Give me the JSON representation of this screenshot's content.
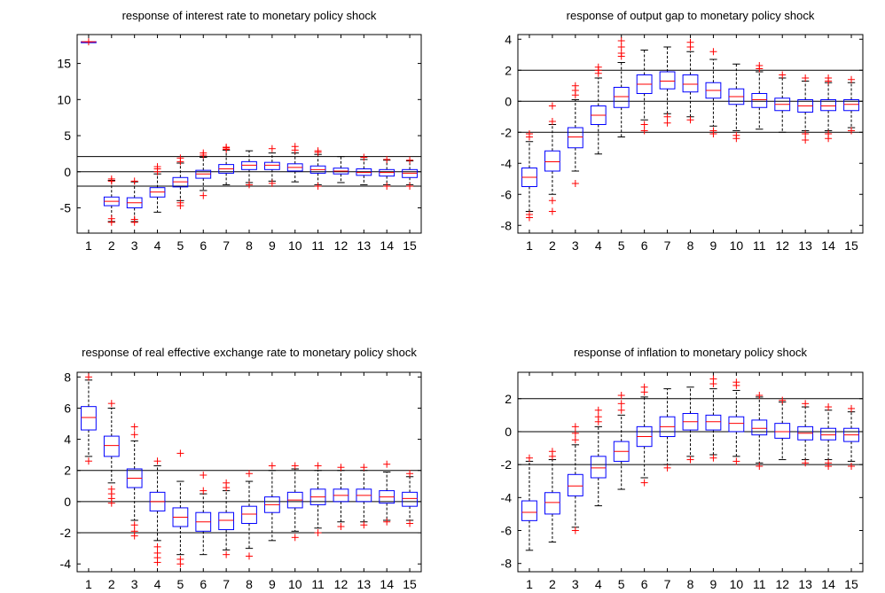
{
  "style": {
    "box_color": "#0000ff",
    "median_color": "#ff0000",
    "outlier_color": "#ff0000",
    "whisker_color": "#000000",
    "band_color": "#000000",
    "background": "#ffffff"
  },
  "chart_data": [
    {
      "type": "boxplot",
      "title": "response of interest rate to monetary policy shock",
      "xlabel": "",
      "ylabel": "",
      "xlim": [
        0.5,
        15.5
      ],
      "ylim": [
        -8.5,
        19
      ],
      "xticks": [
        1,
        2,
        3,
        4,
        5,
        6,
        7,
        8,
        9,
        10,
        11,
        12,
        13,
        14,
        15
      ],
      "yticks": [
        -5,
        0,
        5,
        10,
        15
      ],
      "bands": [
        2.1,
        0,
        -2
      ],
      "boxes": [
        {
          "x": 1,
          "q1": 18.0,
          "median": 18.0,
          "q3": 18.0,
          "whisker_low": 18.0,
          "whisker_high": 18.0,
          "outliers": [
            18.0
          ]
        },
        {
          "x": 2,
          "q1": -4.7,
          "median": -4.1,
          "q3": -3.5,
          "whisker_low": -6.9,
          "whisker_high": -1.2,
          "outliers": [
            -7.0,
            -6.5,
            -1.0,
            -1.3
          ]
        },
        {
          "x": 3,
          "q1": -5.0,
          "median": -4.3,
          "q3": -3.6,
          "whisker_low": -6.9,
          "whisker_high": -1.4,
          "outliers": [
            -7.0,
            -6.6,
            -1.3
          ]
        },
        {
          "x": 4,
          "q1": -3.5,
          "median": -2.8,
          "q3": -2.2,
          "whisker_low": -5.6,
          "whisker_high": -0.3,
          "outliers": [
            0.0,
            0.4,
            0.7
          ]
        },
        {
          "x": 5,
          "q1": -2.1,
          "median": -1.4,
          "q3": -0.8,
          "whisker_low": -4.0,
          "whisker_high": 1.2,
          "outliers": [
            -4.3,
            -4.7,
            1.4,
            1.9
          ]
        },
        {
          "x": 6,
          "q1": -0.9,
          "median": -0.3,
          "q3": 0.2,
          "whisker_low": -2.6,
          "whisker_high": 2.0,
          "outliers": [
            -3.3,
            2.3,
            2.6
          ]
        },
        {
          "x": 7,
          "q1": -0.2,
          "median": 0.4,
          "q3": 1.0,
          "whisker_low": -1.8,
          "whisker_high": 3.0,
          "outliers": [
            3.1,
            3.3,
            3.4
          ]
        },
        {
          "x": 8,
          "q1": 0.3,
          "median": 0.9,
          "q3": 1.4,
          "whisker_low": -1.5,
          "whisker_high": 2.9,
          "outliers": [
            -1.8
          ]
        },
        {
          "x": 9,
          "q1": 0.3,
          "median": 0.9,
          "q3": 1.3,
          "whisker_low": -1.3,
          "whisker_high": 2.6,
          "outliers": [
            -1.6,
            3.2
          ]
        },
        {
          "x": 10,
          "q1": 0.1,
          "median": 0.6,
          "q3": 1.1,
          "whisker_low": -1.4,
          "whisker_high": 2.6,
          "outliers": [
            3.0,
            3.5
          ]
        },
        {
          "x": 11,
          "q1": -0.2,
          "median": 0.3,
          "q3": 0.8,
          "whisker_low": -1.8,
          "whisker_high": 2.4,
          "outliers": [
            -2.0,
            2.7,
            2.9
          ]
        },
        {
          "x": 12,
          "q1": -0.3,
          "median": 0.1,
          "q3": 0.5,
          "whisker_low": -1.5,
          "whisker_high": 2.1,
          "outliers": []
        },
        {
          "x": 13,
          "q1": -0.5,
          "median": -0.1,
          "q3": 0.4,
          "whisker_low": -1.8,
          "whisker_high": 1.7,
          "outliers": [
            2.0
          ]
        },
        {
          "x": 14,
          "q1": -0.6,
          "median": -0.1,
          "q3": 0.3,
          "whisker_low": -1.8,
          "whisker_high": 1.6,
          "outliers": [
            -2.0,
            1.7
          ]
        },
        {
          "x": 15,
          "q1": -0.8,
          "median": -0.2,
          "q3": 0.3,
          "whisker_low": -1.8,
          "whisker_high": 1.5,
          "outliers": [
            -2.0,
            1.6
          ]
        }
      ]
    },
    {
      "type": "boxplot",
      "title": "response of output gap to monetary policy shock",
      "xlabel": "",
      "ylabel": "",
      "xlim": [
        0.5,
        15.5
      ],
      "ylim": [
        -8.5,
        4.3
      ],
      "xticks": [
        1,
        2,
        3,
        4,
        5,
        6,
        7,
        8,
        9,
        10,
        11,
        12,
        13,
        14,
        15
      ],
      "yticks": [
        -8,
        -6,
        -4,
        -2,
        0,
        2,
        4
      ],
      "bands": [
        2,
        0,
        -2
      ],
      "boxes": [
        {
          "x": 1,
          "q1": -5.5,
          "median": -4.9,
          "q3": -4.3,
          "whisker_low": -7.1,
          "whisker_high": -2.6,
          "outliers": [
            -7.3,
            -7.5,
            -2.1,
            -2.3
          ]
        },
        {
          "x": 2,
          "q1": -4.5,
          "median": -3.9,
          "q3": -3.2,
          "whisker_low": -6.0,
          "whisker_high": -1.5,
          "outliers": [
            -6.4,
            -7.1,
            -1.3,
            -0.3
          ]
        },
        {
          "x": 3,
          "q1": -3.0,
          "median": -2.3,
          "q3": -1.7,
          "whisker_low": -4.5,
          "whisker_high": 0.1,
          "outliers": [
            -5.3,
            0.4,
            0.7,
            1.0
          ]
        },
        {
          "x": 4,
          "q1": -1.5,
          "median": -0.9,
          "q3": -0.3,
          "whisker_low": -3.4,
          "whisker_high": 1.5,
          "outliers": [
            1.8,
            2.0,
            2.2
          ]
        },
        {
          "x": 5,
          "q1": -0.4,
          "median": 0.3,
          "q3": 0.9,
          "whisker_low": -2.3,
          "whisker_high": 2.5,
          "outliers": [
            2.9,
            3.1,
            3.5,
            3.9
          ]
        },
        {
          "x": 6,
          "q1": 0.5,
          "median": 1.1,
          "q3": 1.7,
          "whisker_low": -1.2,
          "whisker_high": 3.3,
          "outliers": [
            -1.5,
            -1.9
          ]
        },
        {
          "x": 7,
          "q1": 0.8,
          "median": 1.3,
          "q3": 1.9,
          "whisker_low": -0.8,
          "whisker_high": 3.5,
          "outliers": [
            -1.0,
            -1.4
          ]
        },
        {
          "x": 8,
          "q1": 0.6,
          "median": 1.1,
          "q3": 1.7,
          "whisker_low": -1.0,
          "whisker_high": 3.2,
          "outliers": [
            -1.2,
            3.5,
            3.8
          ]
        },
        {
          "x": 9,
          "q1": 0.2,
          "median": 0.7,
          "q3": 1.2,
          "whisker_low": -1.6,
          "whisker_high": 2.7,
          "outliers": [
            -1.9,
            -2.1,
            3.2
          ]
        },
        {
          "x": 10,
          "q1": -0.2,
          "median": 0.3,
          "q3": 0.8,
          "whisker_low": -1.9,
          "whisker_high": 2.4,
          "outliers": [
            -2.2,
            -2.4
          ]
        },
        {
          "x": 11,
          "q1": -0.4,
          "median": 0.1,
          "q3": 0.5,
          "whisker_low": -1.8,
          "whisker_high": 1.9,
          "outliers": [
            2.1,
            2.3
          ]
        },
        {
          "x": 12,
          "q1": -0.6,
          "median": -0.2,
          "q3": 0.2,
          "whisker_low": -2.0,
          "whisker_high": 1.5,
          "outliers": [
            1.7
          ]
        },
        {
          "x": 13,
          "q1": -0.7,
          "median": -0.3,
          "q3": 0.1,
          "whisker_low": -1.9,
          "whisker_high": 1.3,
          "outliers": [
            -2.1,
            -2.5,
            1.5
          ]
        },
        {
          "x": 14,
          "q1": -0.6,
          "median": -0.3,
          "q3": 0.1,
          "whisker_low": -1.9,
          "whisker_high": 1.2,
          "outliers": [
            -2.1,
            -2.4,
            1.3,
            1.5
          ]
        },
        {
          "x": 15,
          "q1": -0.6,
          "median": -0.2,
          "q3": 0.1,
          "whisker_low": -1.7,
          "whisker_high": 1.2,
          "outliers": [
            -1.9,
            1.4
          ]
        }
      ]
    },
    {
      "type": "boxplot",
      "title": "response of real effective exchange rate to monetary policy shock",
      "xlabel": "",
      "ylabel": "",
      "xlim": [
        0.5,
        15.5
      ],
      "ylim": [
        -4.5,
        8.3
      ],
      "xticks": [
        1,
        2,
        3,
        4,
        5,
        6,
        7,
        8,
        9,
        10,
        11,
        12,
        13,
        14,
        15
      ],
      "yticks": [
        -4,
        -2,
        0,
        2,
        4,
        6,
        8
      ],
      "bands": [
        2,
        0,
        -2
      ],
      "boxes": [
        {
          "x": 1,
          "q1": 4.6,
          "median": 5.4,
          "q3": 6.1,
          "whisker_low": 2.9,
          "whisker_high": 7.8,
          "outliers": [
            2.6,
            8.0
          ]
        },
        {
          "x": 2,
          "q1": 2.9,
          "median": 3.6,
          "q3": 4.2,
          "whisker_low": 1.2,
          "whisker_high": 6.0,
          "outliers": [
            0.8,
            0.5,
            0.2,
            -0.1,
            6.3
          ]
        },
        {
          "x": 3,
          "q1": 0.9,
          "median": 1.5,
          "q3": 2.1,
          "whisker_low": -1.2,
          "whisker_high": 3.9,
          "outliers": [
            -1.5,
            -1.9,
            -2.2,
            4.3,
            4.8
          ]
        },
        {
          "x": 4,
          "q1": -0.6,
          "median": 0.0,
          "q3": 0.6,
          "whisker_low": -2.5,
          "whisker_high": 2.3,
          "outliers": [
            -2.9,
            -3.3,
            -3.6,
            -3.9,
            2.6
          ]
        },
        {
          "x": 5,
          "q1": -1.6,
          "median": -1.0,
          "q3": -0.4,
          "whisker_low": -3.4,
          "whisker_high": 1.3,
          "outliers": [
            -3.7,
            -4.0,
            3.1
          ]
        },
        {
          "x": 6,
          "q1": -1.9,
          "median": -1.3,
          "q3": -0.7,
          "whisker_low": -3.4,
          "whisker_high": 0.5,
          "outliers": [
            0.7,
            1.7
          ]
        },
        {
          "x": 7,
          "q1": -1.8,
          "median": -1.2,
          "q3": -0.7,
          "whisker_low": -3.1,
          "whisker_high": 0.7,
          "outliers": [
            -3.4,
            0.9,
            1.2
          ]
        },
        {
          "x": 8,
          "q1": -1.4,
          "median": -0.8,
          "q3": -0.3,
          "whisker_low": -3.0,
          "whisker_high": 1.3,
          "outliers": [
            -3.5,
            1.8
          ]
        },
        {
          "x": 9,
          "q1": -0.7,
          "median": -0.2,
          "q3": 0.3,
          "whisker_low": -2.5,
          "whisker_high": 2.0,
          "outliers": [
            2.3
          ]
        },
        {
          "x": 10,
          "q1": -0.4,
          "median": 0.1,
          "q3": 0.6,
          "whisker_low": -1.9,
          "whisker_high": 2.1,
          "outliers": [
            -2.3,
            2.3
          ]
        },
        {
          "x": 11,
          "q1": -0.2,
          "median": 0.3,
          "q3": 0.8,
          "whisker_low": -1.7,
          "whisker_high": 2.0,
          "outliers": [
            -2.0,
            2.3
          ]
        },
        {
          "x": 12,
          "q1": 0.0,
          "median": 0.4,
          "q3": 0.8,
          "whisker_low": -1.3,
          "whisker_high": 2.0,
          "outliers": [
            -1.6,
            2.2
          ]
        },
        {
          "x": 13,
          "q1": 0.0,
          "median": 0.4,
          "q3": 0.8,
          "whisker_low": -1.3,
          "whisker_high": 2.0,
          "outliers": [
            -1.5,
            2.2
          ]
        },
        {
          "x": 14,
          "q1": -0.1,
          "median": 0.3,
          "q3": 0.7,
          "whisker_low": -1.2,
          "whisker_high": 1.9,
          "outliers": [
            -1.3,
            2.4
          ]
        },
        {
          "x": 15,
          "q1": -0.3,
          "median": 0.2,
          "q3": 0.6,
          "whisker_low": -1.2,
          "whisker_high": 1.6,
          "outliers": [
            -1.4,
            1.8
          ]
        }
      ]
    },
    {
      "type": "boxplot",
      "title": "response of inflation to monetary policy shock",
      "xlabel": "",
      "ylabel": "",
      "xlim": [
        0.5,
        15.5
      ],
      "ylim": [
        -8.5,
        3.6
      ],
      "xticks": [
        1,
        2,
        3,
        4,
        5,
        6,
        7,
        8,
        9,
        10,
        11,
        12,
        13,
        14,
        15
      ],
      "yticks": [
        -8,
        -6,
        -4,
        -2,
        0,
        2
      ],
      "bands": [
        2,
        0,
        -2
      ],
      "boxes": [
        {
          "x": 1,
          "q1": -5.4,
          "median": -4.9,
          "q3": -4.2,
          "whisker_low": -7.2,
          "whisker_high": -1.8,
          "outliers": [
            -1.6
          ]
        },
        {
          "x": 2,
          "q1": -5.0,
          "median": -4.3,
          "q3": -3.7,
          "whisker_low": -6.7,
          "whisker_high": -1.7,
          "outliers": [
            -1.5,
            -1.2
          ]
        },
        {
          "x": 3,
          "q1": -3.9,
          "median": -3.3,
          "q3": -2.6,
          "whisker_low": -5.8,
          "whisker_high": -0.8,
          "outliers": [
            -6.0,
            -0.5,
            -0.1,
            0.3
          ]
        },
        {
          "x": 4,
          "q1": -2.8,
          "median": -2.2,
          "q3": -1.5,
          "whisker_low": -4.5,
          "whisker_high": 0.3,
          "outliers": [
            0.6,
            0.9,
            1.3
          ]
        },
        {
          "x": 5,
          "q1": -1.8,
          "median": -1.2,
          "q3": -0.6,
          "whisker_low": -3.5,
          "whisker_high": 1.0,
          "outliers": [
            1.3,
            1.7,
            2.2
          ]
        },
        {
          "x": 6,
          "q1": -0.9,
          "median": -0.3,
          "q3": 0.3,
          "whisker_low": -2.8,
          "whisker_high": 2.1,
          "outliers": [
            -3.1,
            2.4,
            2.7
          ]
        },
        {
          "x": 7,
          "q1": -0.3,
          "median": 0.3,
          "q3": 0.9,
          "whisker_low": -2.0,
          "whisker_high": 2.6,
          "outliers": [
            -2.2
          ]
        },
        {
          "x": 8,
          "q1": 0.1,
          "median": 0.6,
          "q3": 1.1,
          "whisker_low": -1.5,
          "whisker_high": 2.7,
          "outliers": [
            -1.7
          ]
        },
        {
          "x": 9,
          "q1": 0.1,
          "median": 0.6,
          "q3": 1.0,
          "whisker_low": -1.4,
          "whisker_high": 2.6,
          "outliers": [
            -1.6,
            2.9,
            3.2
          ]
        },
        {
          "x": 10,
          "q1": 0.0,
          "median": 0.5,
          "q3": 0.9,
          "whisker_low": -1.5,
          "whisker_high": 2.5,
          "outliers": [
            -1.8,
            2.8,
            3.0
          ]
        },
        {
          "x": 11,
          "q1": -0.2,
          "median": 0.2,
          "q3": 0.7,
          "whisker_low": -1.9,
          "whisker_high": 2.1,
          "outliers": [
            -2.1,
            2.2
          ]
        },
        {
          "x": 12,
          "q1": -0.4,
          "median": 0.0,
          "q3": 0.5,
          "whisker_low": -1.7,
          "whisker_high": 1.8,
          "outliers": [
            1.9
          ]
        },
        {
          "x": 13,
          "q1": -0.5,
          "median": -0.1,
          "q3": 0.3,
          "whisker_low": -1.7,
          "whisker_high": 1.5,
          "outliers": [
            -1.9,
            1.7
          ]
        },
        {
          "x": 14,
          "q1": -0.5,
          "median": -0.2,
          "q3": 0.2,
          "whisker_low": -1.7,
          "whisker_high": 1.3,
          "outliers": [
            -1.9,
            -2.1,
            1.5
          ]
        },
        {
          "x": 15,
          "q1": -0.6,
          "median": -0.2,
          "q3": 0.2,
          "whisker_low": -1.8,
          "whisker_high": 1.2,
          "outliers": [
            -2.1,
            1.4
          ]
        }
      ]
    }
  ]
}
